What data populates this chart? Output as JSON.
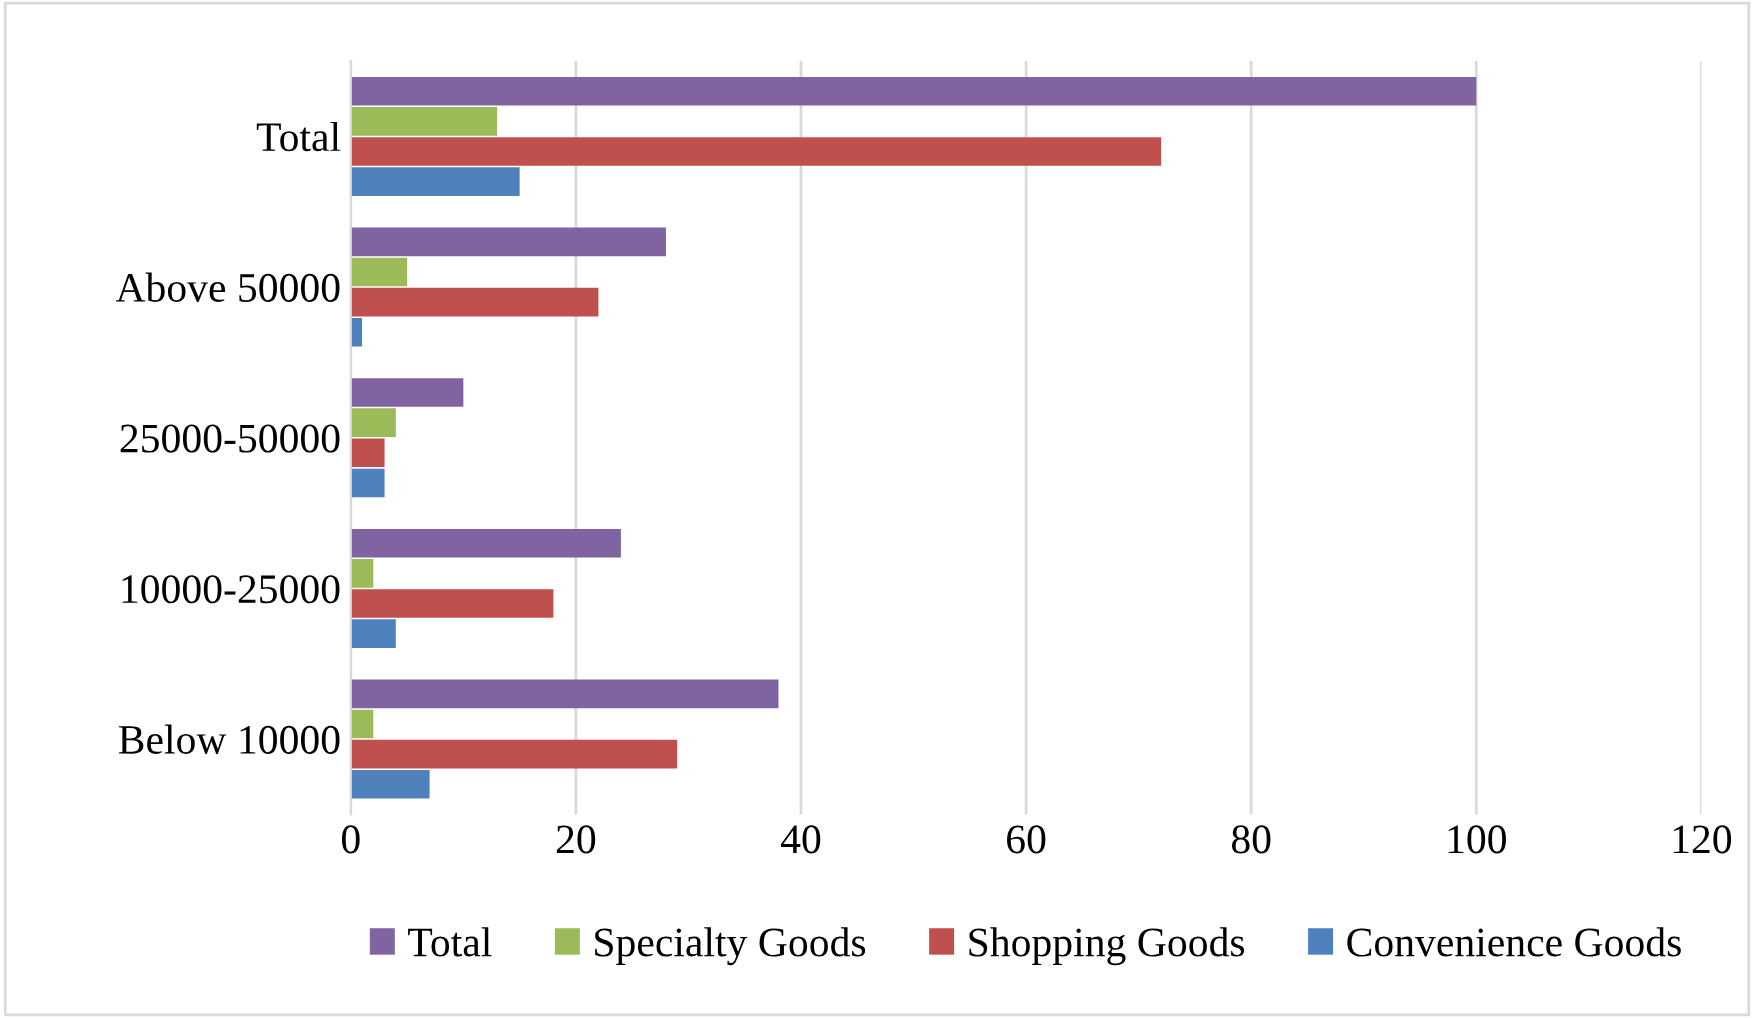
{
  "chart_data": {
    "type": "bar",
    "orientation": "horizontal",
    "categories": [
      "Total",
      "Above 50000",
      "25000-50000",
      "10000-25000",
      "Below 10000"
    ],
    "series": [
      {
        "name": "Total",
        "color": "#8064a2",
        "values": [
          100,
          28,
          10,
          24,
          38
        ]
      },
      {
        "name": "Specialty Goods",
        "color": "#9bbb59",
        "values": [
          13,
          5,
          4,
          2,
          2
        ]
      },
      {
        "name": "Shopping Goods",
        "color": "#c0504d",
        "values": [
          72,
          22,
          3,
          18,
          29
        ]
      },
      {
        "name": "Convenience Goods",
        "color": "#4f81bd",
        "values": [
          15,
          1,
          3,
          4,
          7
        ]
      }
    ],
    "xlim": [
      0,
      120
    ],
    "xticks": [
      0,
      20,
      40,
      60,
      80,
      100,
      120
    ],
    "grid": "x",
    "legend": "bottom"
  }
}
